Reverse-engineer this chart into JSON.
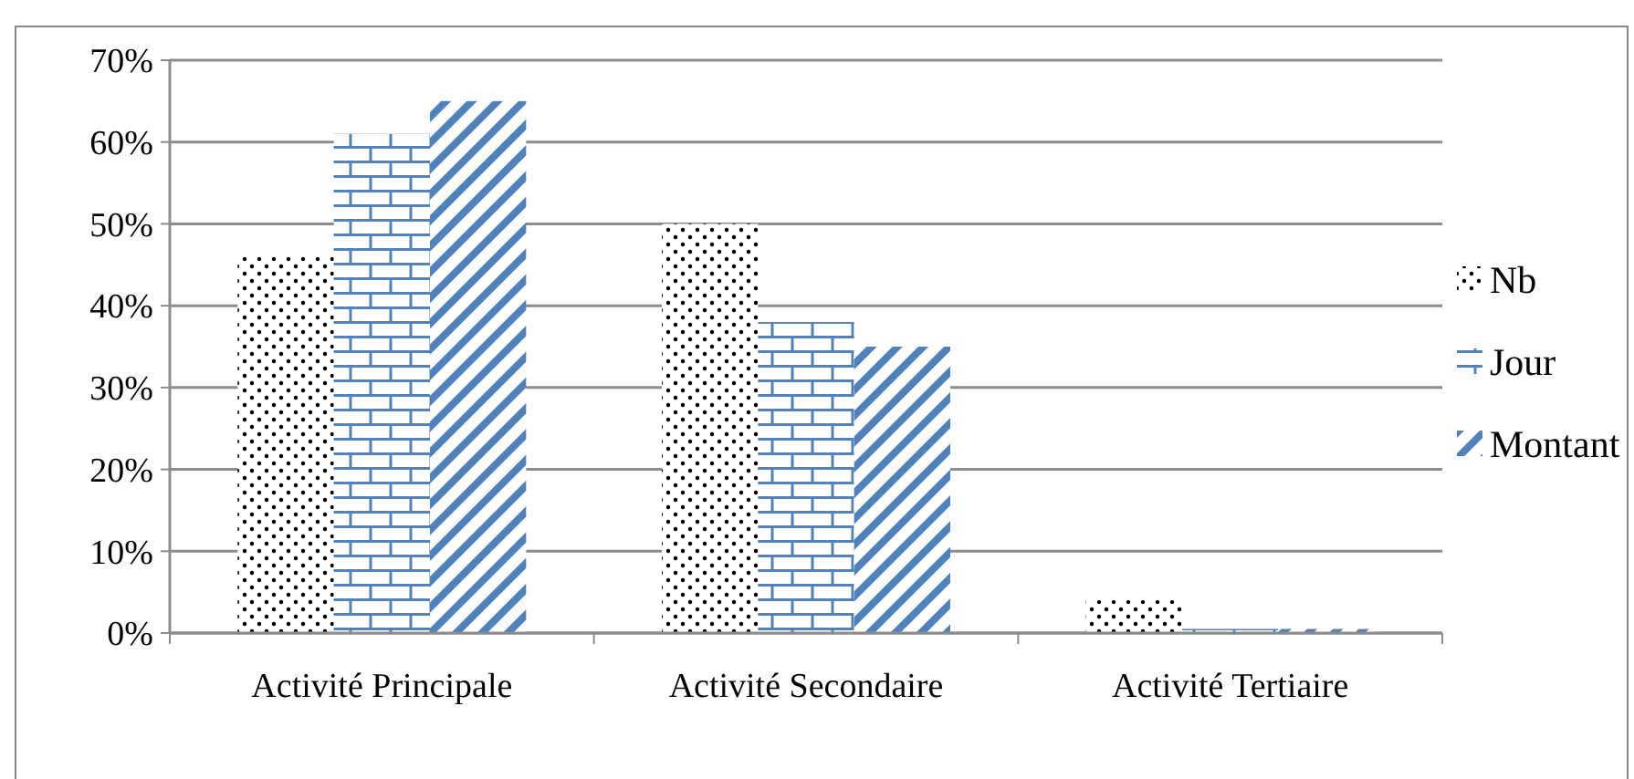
{
  "chart_data": {
    "type": "bar",
    "categories": [
      "Activité Principale",
      "Activité Secondaire",
      "Activité Tertiaire"
    ],
    "series": [
      {
        "name": "Nb",
        "color": "#000000",
        "values": [
          46,
          50,
          4
        ]
      },
      {
        "name": "Jour",
        "color": "#4f81bd",
        "values": [
          61,
          38,
          0.5
        ]
      },
      {
        "name": "Montant",
        "color": "#4f81bd",
        "values": [
          65,
          35,
          0.5
        ]
      }
    ],
    "ylim": [
      0,
      70
    ],
    "yticks": [
      {
        "value": 0,
        "label": "0%"
      },
      {
        "value": 10,
        "label": "10%"
      },
      {
        "value": 20,
        "label": "20%"
      },
      {
        "value": 30,
        "label": "30%"
      },
      {
        "value": 40,
        "label": "40%"
      },
      {
        "value": 50,
        "label": "50%"
      },
      {
        "value": 60,
        "label": "60%"
      },
      {
        "value": 70,
        "label": "70%"
      }
    ],
    "grid": "y",
    "legend": "right"
  }
}
